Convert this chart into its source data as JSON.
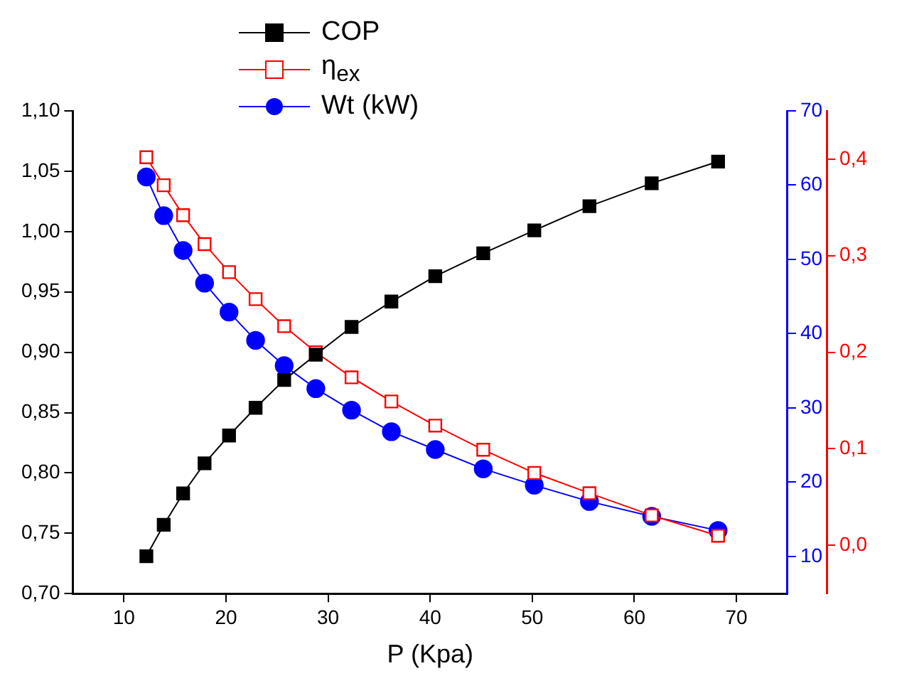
{
  "chart_data": {
    "type": "line",
    "xlabel": "P (Kpa)",
    "legend": "top left",
    "grid": false,
    "x": [
      12.2,
      13.9,
      15.8,
      17.9,
      20.3,
      22.9,
      25.7,
      28.8,
      32.3,
      36.2,
      40.5,
      45.2,
      50.2,
      55.6,
      61.7,
      68.2
    ],
    "xlim": [
      5,
      75
    ],
    "xticks": [
      10,
      20,
      30,
      40,
      50,
      60,
      70
    ],
    "ylim": [
      0.7,
      1.1
    ],
    "yticks": [
      {
        "value": 0.7,
        "label": "0,70"
      },
      {
        "value": 0.75,
        "label": "0,75"
      },
      {
        "value": 0.8,
        "label": "0,80"
      },
      {
        "value": 0.85,
        "label": "0,85"
      },
      {
        "value": 0.9,
        "label": "0,90"
      },
      {
        "value": 0.95,
        "label": "0,95"
      },
      {
        "value": 1.0,
        "label": "1,00"
      },
      {
        "value": 1.05,
        "label": "1,05"
      },
      {
        "value": 1.1,
        "label": "1,10"
      }
    ],
    "y2lim": [
      5,
      70
    ],
    "y2ticks": [
      10,
      20,
      30,
      40,
      50,
      60,
      70
    ],
    "y3lim": [
      -0.05,
      0.45
    ],
    "y3ticks": [
      {
        "value": 0,
        "label": "0,0"
      },
      {
        "value": 0.1,
        "label": "0,1"
      },
      {
        "value": 0.2,
        "label": "0,2"
      },
      {
        "value": 0.3,
        "label": "0,3"
      },
      {
        "value": 0.4,
        "label": "0,4"
      }
    ],
    "series": [
      {
        "name": "COP",
        "color": "#000000",
        "marker": "square",
        "values": [
          0.731,
          0.757,
          0.783,
          0.808,
          0.831,
          0.854,
          0.877,
          0.898,
          0.921,
          0.942,
          0.963,
          0.982,
          1.001,
          1.021,
          1.04,
          1.058
        ]
      },
      {
        "name": "η$_{ex}$",
        "color": "#ff0000",
        "marker": "square",
        "axis": "y3",
        "values": [
          0.402,
          0.373,
          0.342,
          0.312,
          0.283,
          0.255,
          0.227,
          0.2,
          0.174,
          0.149,
          0.124,
          0.099,
          0.075,
          0.054,
          0.031,
          0.01
        ]
      },
      {
        "name": "Wt (kW)",
        "color": "#0000ff",
        "marker": "circle",
        "axis": "y2",
        "values": [
          61.1,
          55.9,
          51.2,
          46.8,
          42.9,
          39.1,
          35.7,
          32.6,
          29.7,
          26.8,
          24.4,
          21.8,
          19.6,
          17.4,
          15.4,
          13.5
        ]
      }
    ]
  }
}
